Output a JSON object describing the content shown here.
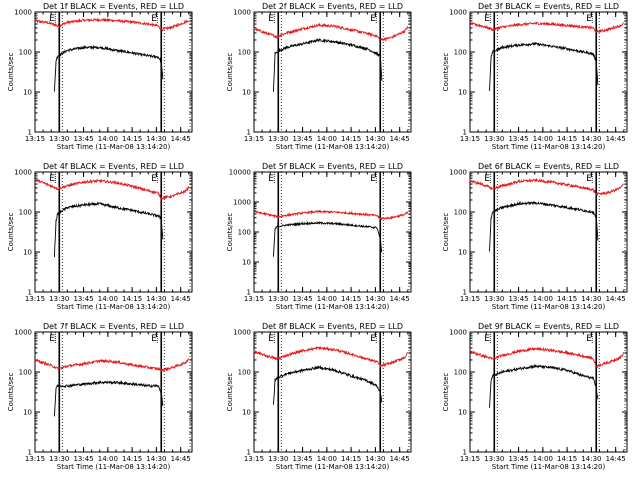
{
  "chart_data": [
    {
      "type": "line",
      "title": "Det 1f BLACK = Events, RED = LLD",
      "xlabel": "Start Time (11-Mar-08 13:14:20)",
      "ylabel": "Counts/sec",
      "yscale": "log",
      "ylim": [
        1,
        1000
      ],
      "xlim": [
        "13:15",
        "14:52"
      ],
      "xticks": [
        "13:15",
        "13:30",
        "13:45",
        "14:00",
        "14:15",
        "14:30",
        "14:45"
      ],
      "yticks": [
        "1",
        "10",
        "100",
        "1000"
      ],
      "grid": false,
      "legend": "none",
      "flags": [
        "E",
        "E"
      ],
      "series": [
        {
          "color": "#e41a1c",
          "x": [
            "13:15",
            "13:22",
            "13:28",
            "13:29",
            "13:35",
            "13:45",
            "13:55",
            "14:05",
            "14:15",
            "14:25",
            "14:31",
            "14:33",
            "14:40",
            "14:48",
            "14:50"
          ],
          "y": [
            600,
            550,
            470,
            440,
            550,
            620,
            640,
            610,
            560,
            500,
            450,
            360,
            420,
            560,
            620
          ]
        },
        {
          "color": "#000000",
          "x": [
            "13:27",
            "13:28",
            "13:29",
            "13:35",
            "13:45",
            "13:55",
            "14:05",
            "14:15",
            "14:25",
            "14:31",
            "14:33",
            "14:34"
          ],
          "y": [
            10,
            60,
            80,
            110,
            130,
            130,
            110,
            95,
            80,
            75,
            60,
            20
          ]
        }
      ]
    },
    {
      "type": "line",
      "title": "Det 2f BLACK = Events, RED = LLD",
      "xlabel": "Start Time (11-Mar-08 13:14:20)",
      "ylabel": "Counts/sec",
      "yscale": "log",
      "ylim": [
        1,
        1000
      ],
      "xlim": [
        "13:15",
        "14:52"
      ],
      "xticks": [
        "13:15",
        "13:30",
        "13:45",
        "14:00",
        "14:15",
        "14:30",
        "14:45"
      ],
      "yticks": [
        "1",
        "10",
        "100",
        "1000"
      ],
      "grid": false,
      "legend": "none",
      "flags": [
        "E",
        "E"
      ],
      "series": [
        {
          "color": "#e41a1c",
          "x": [
            "13:15",
            "13:22",
            "13:28",
            "13:29",
            "13:35",
            "13:45",
            "13:55",
            "14:05",
            "14:15",
            "14:25",
            "14:31",
            "14:33",
            "14:40",
            "14:48",
            "14:50"
          ],
          "y": [
            380,
            300,
            250,
            240,
            300,
            380,
            470,
            440,
            360,
            290,
            250,
            200,
            230,
            330,
            420
          ]
        },
        {
          "color": "#000000",
          "x": [
            "13:27",
            "13:28",
            "13:29",
            "13:35",
            "13:45",
            "13:55",
            "14:05",
            "14:15",
            "14:25",
            "14:31",
            "14:33",
            "14:34"
          ],
          "y": [
            10,
            90,
            100,
            130,
            160,
            200,
            180,
            150,
            120,
            90,
            80,
            20
          ]
        }
      ]
    },
    {
      "type": "line",
      "title": "Det 3f BLACK = Events, RED = LLD",
      "xlabel": "Start Time (11-Mar-08 13:14:20)",
      "ylabel": "Counts/sec",
      "yscale": "log",
      "ylim": [
        1,
        1000
      ],
      "xlim": [
        "13:15",
        "14:52"
      ],
      "xticks": [
        "13:15",
        "13:30",
        "13:45",
        "14:00",
        "14:15",
        "14:30",
        "14:45"
      ],
      "yticks": [
        "1",
        "10",
        "100",
        "1000"
      ],
      "grid": false,
      "legend": "none",
      "flags": [
        "E",
        "E"
      ],
      "series": [
        {
          "color": "#e41a1c",
          "x": [
            "13:15",
            "13:22",
            "13:28",
            "13:29",
            "13:35",
            "13:45",
            "13:55",
            "14:05",
            "14:15",
            "14:25",
            "14:31",
            "14:33",
            "14:40",
            "14:48",
            "14:50"
          ],
          "y": [
            520,
            450,
            380,
            360,
            420,
            480,
            520,
            500,
            460,
            420,
            400,
            320,
            360,
            460,
            520
          ]
        },
        {
          "color": "#000000",
          "x": [
            "13:27",
            "13:28",
            "13:29",
            "13:35",
            "13:45",
            "13:55",
            "14:05",
            "14:15",
            "14:25",
            "14:31",
            "14:33",
            "14:34"
          ],
          "y": [
            10,
            70,
            100,
            130,
            150,
            160,
            140,
            120,
            100,
            90,
            60,
            15
          ]
        }
      ]
    },
    {
      "type": "line",
      "title": "Det 4f BLACK = Events, RED = LLD",
      "xlabel": "Start Time (11-Mar-08 13:14:20)",
      "ylabel": "Counts/sec",
      "yscale": "log",
      "ylim": [
        1,
        1000
      ],
      "xlim": [
        "13:15",
        "14:52"
      ],
      "xticks": [
        "13:15",
        "13:30",
        "13:45",
        "14:00",
        "14:15",
        "14:30",
        "14:45"
      ],
      "yticks": [
        "1",
        "10",
        "100",
        "1000"
      ],
      "grid": false,
      "legend": "none",
      "flags": [
        "E",
        "E"
      ],
      "series": [
        {
          "color": "#e41a1c",
          "x": [
            "13:15",
            "13:22",
            "13:28",
            "13:29",
            "13:35",
            "13:45",
            "13:55",
            "14:05",
            "14:15",
            "14:25",
            "14:31",
            "14:33",
            "14:40",
            "14:48",
            "14:50"
          ],
          "y": [
            650,
            500,
            400,
            380,
            450,
            560,
            600,
            540,
            440,
            340,
            300,
            220,
            250,
            330,
            420
          ]
        },
        {
          "color": "#000000",
          "x": [
            "13:27",
            "13:28",
            "13:29",
            "13:35",
            "13:45",
            "13:55",
            "14:05",
            "14:15",
            "14:25",
            "14:31",
            "14:33",
            "14:34"
          ],
          "y": [
            8,
            60,
            90,
            130,
            150,
            160,
            130,
            110,
            90,
            80,
            70,
            20
          ]
        }
      ]
    },
    {
      "type": "line",
      "title": "Det 5f BLACK = Events, RED = LLD",
      "xlabel": "Start Time (11-Mar-08 13:14:20)",
      "ylabel": "Counts/sec",
      "yscale": "log",
      "ylim": [
        1,
        10000
      ],
      "xlim": [
        "13:15",
        "14:52"
      ],
      "xticks": [
        "13:15",
        "13:30",
        "13:45",
        "14:00",
        "14:15",
        "14:30",
        "14:45"
      ],
      "yticks": [
        "1",
        "10",
        "100",
        "1000",
        "10000"
      ],
      "grid": false,
      "legend": "none",
      "flags": [
        "E",
        "E"
      ],
      "series": [
        {
          "color": "#e41a1c",
          "x": [
            "13:15",
            "13:22",
            "13:28",
            "13:29",
            "13:35",
            "13:45",
            "13:55",
            "14:05",
            "14:15",
            "14:25",
            "14:31",
            "14:33",
            "14:40",
            "14:48",
            "14:50"
          ],
          "y": [
            480,
            400,
            340,
            320,
            360,
            430,
            480,
            460,
            420,
            380,
            350,
            280,
            300,
            380,
            450
          ]
        },
        {
          "color": "#000000",
          "x": [
            "13:27",
            "13:28",
            "13:29",
            "13:35",
            "13:45",
            "13:55",
            "14:05",
            "14:15",
            "14:25",
            "14:31",
            "14:33",
            "14:34"
          ],
          "y": [
            15,
            120,
            150,
            170,
            190,
            200,
            190,
            170,
            150,
            140,
            60,
            20
          ]
        }
      ]
    },
    {
      "type": "line",
      "title": "Det 6f BLACK = Events, RED = LLD",
      "xlabel": "Start Time (11-Mar-08 13:14:20)",
      "ylabel": "Counts/sec",
      "yscale": "log",
      "ylim": [
        1,
        1000
      ],
      "xlim": [
        "13:15",
        "14:52"
      ],
      "xticks": [
        "13:15",
        "13:30",
        "13:45",
        "14:00",
        "14:15",
        "14:30",
        "14:45"
      ],
      "yticks": [
        "1",
        "10",
        "100",
        "1000"
      ],
      "grid": false,
      "legend": "none",
      "flags": [
        "E",
        "E"
      ],
      "series": [
        {
          "color": "#e41a1c",
          "x": [
            "13:15",
            "13:22",
            "13:28",
            "13:29",
            "13:35",
            "13:45",
            "13:55",
            "14:05",
            "14:15",
            "14:25",
            "14:31",
            "14:33",
            "14:40",
            "14:48",
            "14:50"
          ],
          "y": [
            600,
            500,
            400,
            380,
            450,
            580,
            620,
            560,
            480,
            400,
            360,
            280,
            300,
            400,
            500
          ]
        },
        {
          "color": "#000000",
          "x": [
            "13:27",
            "13:28",
            "13:29",
            "13:35",
            "13:45",
            "13:55",
            "14:05",
            "14:15",
            "14:25",
            "14:31",
            "14:33",
            "14:34"
          ],
          "y": [
            10,
            70,
            100,
            130,
            160,
            170,
            150,
            130,
            110,
            100,
            70,
            20
          ]
        }
      ]
    },
    {
      "type": "line",
      "title": "Det 7f BLACK = Events, RED = LLD",
      "xlabel": "Start Time (11-Mar-08 13:14:20)",
      "ylabel": "Counts/sec",
      "yscale": "log",
      "ylim": [
        1,
        1000
      ],
      "xlim": [
        "13:15",
        "14:52"
      ],
      "xticks": [
        "13:15",
        "13:30",
        "13:45",
        "14:00",
        "14:15",
        "14:30",
        "14:45"
      ],
      "yticks": [
        "1",
        "10",
        "100",
        "1000"
      ],
      "grid": false,
      "legend": "none",
      "flags": [
        "E",
        "E"
      ],
      "series": [
        {
          "color": "#e41a1c",
          "x": [
            "13:15",
            "13:22",
            "13:28",
            "13:29",
            "13:35",
            "13:45",
            "13:55",
            "14:05",
            "14:15",
            "14:25",
            "14:31",
            "14:33",
            "14:40",
            "14:48",
            "14:50"
          ],
          "y": [
            200,
            160,
            130,
            120,
            140,
            160,
            190,
            180,
            150,
            130,
            120,
            110,
            130,
            170,
            220
          ]
        },
        {
          "color": "#000000",
          "x": [
            "13:27",
            "13:28",
            "13:29",
            "13:35",
            "13:45",
            "13:55",
            "14:05",
            "14:15",
            "14:25",
            "14:31",
            "14:33",
            "14:34"
          ],
          "y": [
            8,
            40,
            45,
            45,
            50,
            55,
            55,
            50,
            45,
            45,
            30,
            15
          ]
        }
      ]
    },
    {
      "type": "line",
      "title": "Det 8f BLACK = Events, RED = LLD",
      "xlabel": "Start Time (11-Mar-08 13:14:20)",
      "ylabel": "Counts/sec",
      "yscale": "log",
      "ylim": [
        1,
        1000
      ],
      "xlim": [
        "13:15",
        "14:52"
      ],
      "xticks": [
        "13:15",
        "13:30",
        "13:45",
        "14:00",
        "14:15",
        "14:30",
        "14:45"
      ],
      "yticks": [
        "1",
        "10",
        "100",
        "1000"
      ],
      "grid": false,
      "legend": "none",
      "flags": [
        "E",
        "E"
      ],
      "series": [
        {
          "color": "#e41a1c",
          "x": [
            "13:15",
            "13:22",
            "13:28",
            "13:29",
            "13:35",
            "13:45",
            "13:55",
            "14:05",
            "14:15",
            "14:25",
            "14:31",
            "14:33",
            "14:40",
            "14:48",
            "14:50"
          ],
          "y": [
            320,
            260,
            220,
            210,
            260,
            340,
            400,
            360,
            280,
            210,
            180,
            140,
            170,
            230,
            300
          ]
        },
        {
          "color": "#000000",
          "x": [
            "13:27",
            "13:28",
            "13:29",
            "13:35",
            "13:45",
            "13:55",
            "14:05",
            "14:15",
            "14:25",
            "14:31",
            "14:33",
            "14:34"
          ],
          "y": [
            15,
            60,
            70,
            90,
            110,
            130,
            110,
            80,
            60,
            45,
            30,
            18
          ]
        }
      ]
    },
    {
      "type": "line",
      "title": "Det 9f BLACK = Events, RED = LLD",
      "xlabel": "Start Time (11-Mar-08 13:14:20)",
      "ylabel": "Counts/sec",
      "yscale": "log",
      "ylim": [
        1,
        1000
      ],
      "xlim": [
        "13:15",
        "14:52"
      ],
      "xticks": [
        "13:15",
        "13:30",
        "13:45",
        "14:00",
        "14:15",
        "14:30",
        "14:45"
      ],
      "yticks": [
        "1",
        "10",
        "100",
        "1000"
      ],
      "grid": false,
      "legend": "none",
      "flags": [
        "E",
        "E"
      ],
      "series": [
        {
          "color": "#e41a1c",
          "x": [
            "13:15",
            "13:22",
            "13:28",
            "13:29",
            "13:35",
            "13:45",
            "13:55",
            "14:05",
            "14:15",
            "14:25",
            "14:31",
            "14:33",
            "14:40",
            "14:48",
            "14:50"
          ],
          "y": [
            330,
            260,
            220,
            210,
            260,
            330,
            380,
            350,
            300,
            250,
            220,
            140,
            170,
            230,
            300
          ]
        },
        {
          "color": "#000000",
          "x": [
            "13:27",
            "13:28",
            "13:29",
            "13:35",
            "13:45",
            "13:55",
            "14:05",
            "14:15",
            "14:25",
            "14:31",
            "14:33",
            "14:34"
          ],
          "y": [
            12,
            60,
            80,
            100,
            120,
            140,
            130,
            110,
            80,
            70,
            40,
            20
          ]
        }
      ]
    }
  ]
}
